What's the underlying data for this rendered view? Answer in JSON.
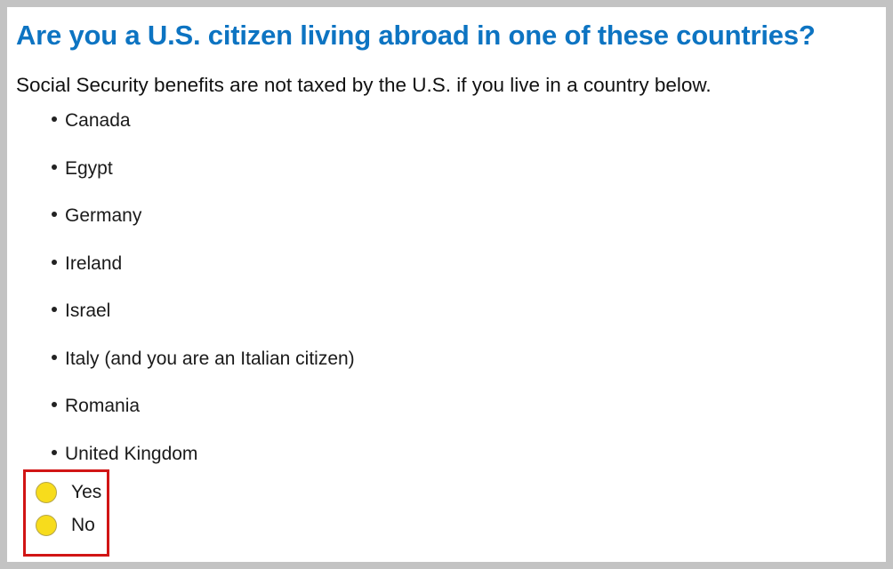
{
  "title": "Are you a U.S. citizen living abroad in one of these countries?",
  "subtitle": "Social Security benefits are not taxed by the U.S. if you live in a country below.",
  "countries": [
    "Canada",
    "Egypt",
    "Germany",
    "Ireland",
    "Israel",
    "Italy (and you are an Italian citizen)",
    "Romania",
    "United Kingdom"
  ],
  "options": {
    "yes": "Yes",
    "no": "No"
  },
  "colors": {
    "title": "#0d74c2",
    "radio_fill": "#f7dc1c",
    "highlight_border": "#d11515"
  }
}
